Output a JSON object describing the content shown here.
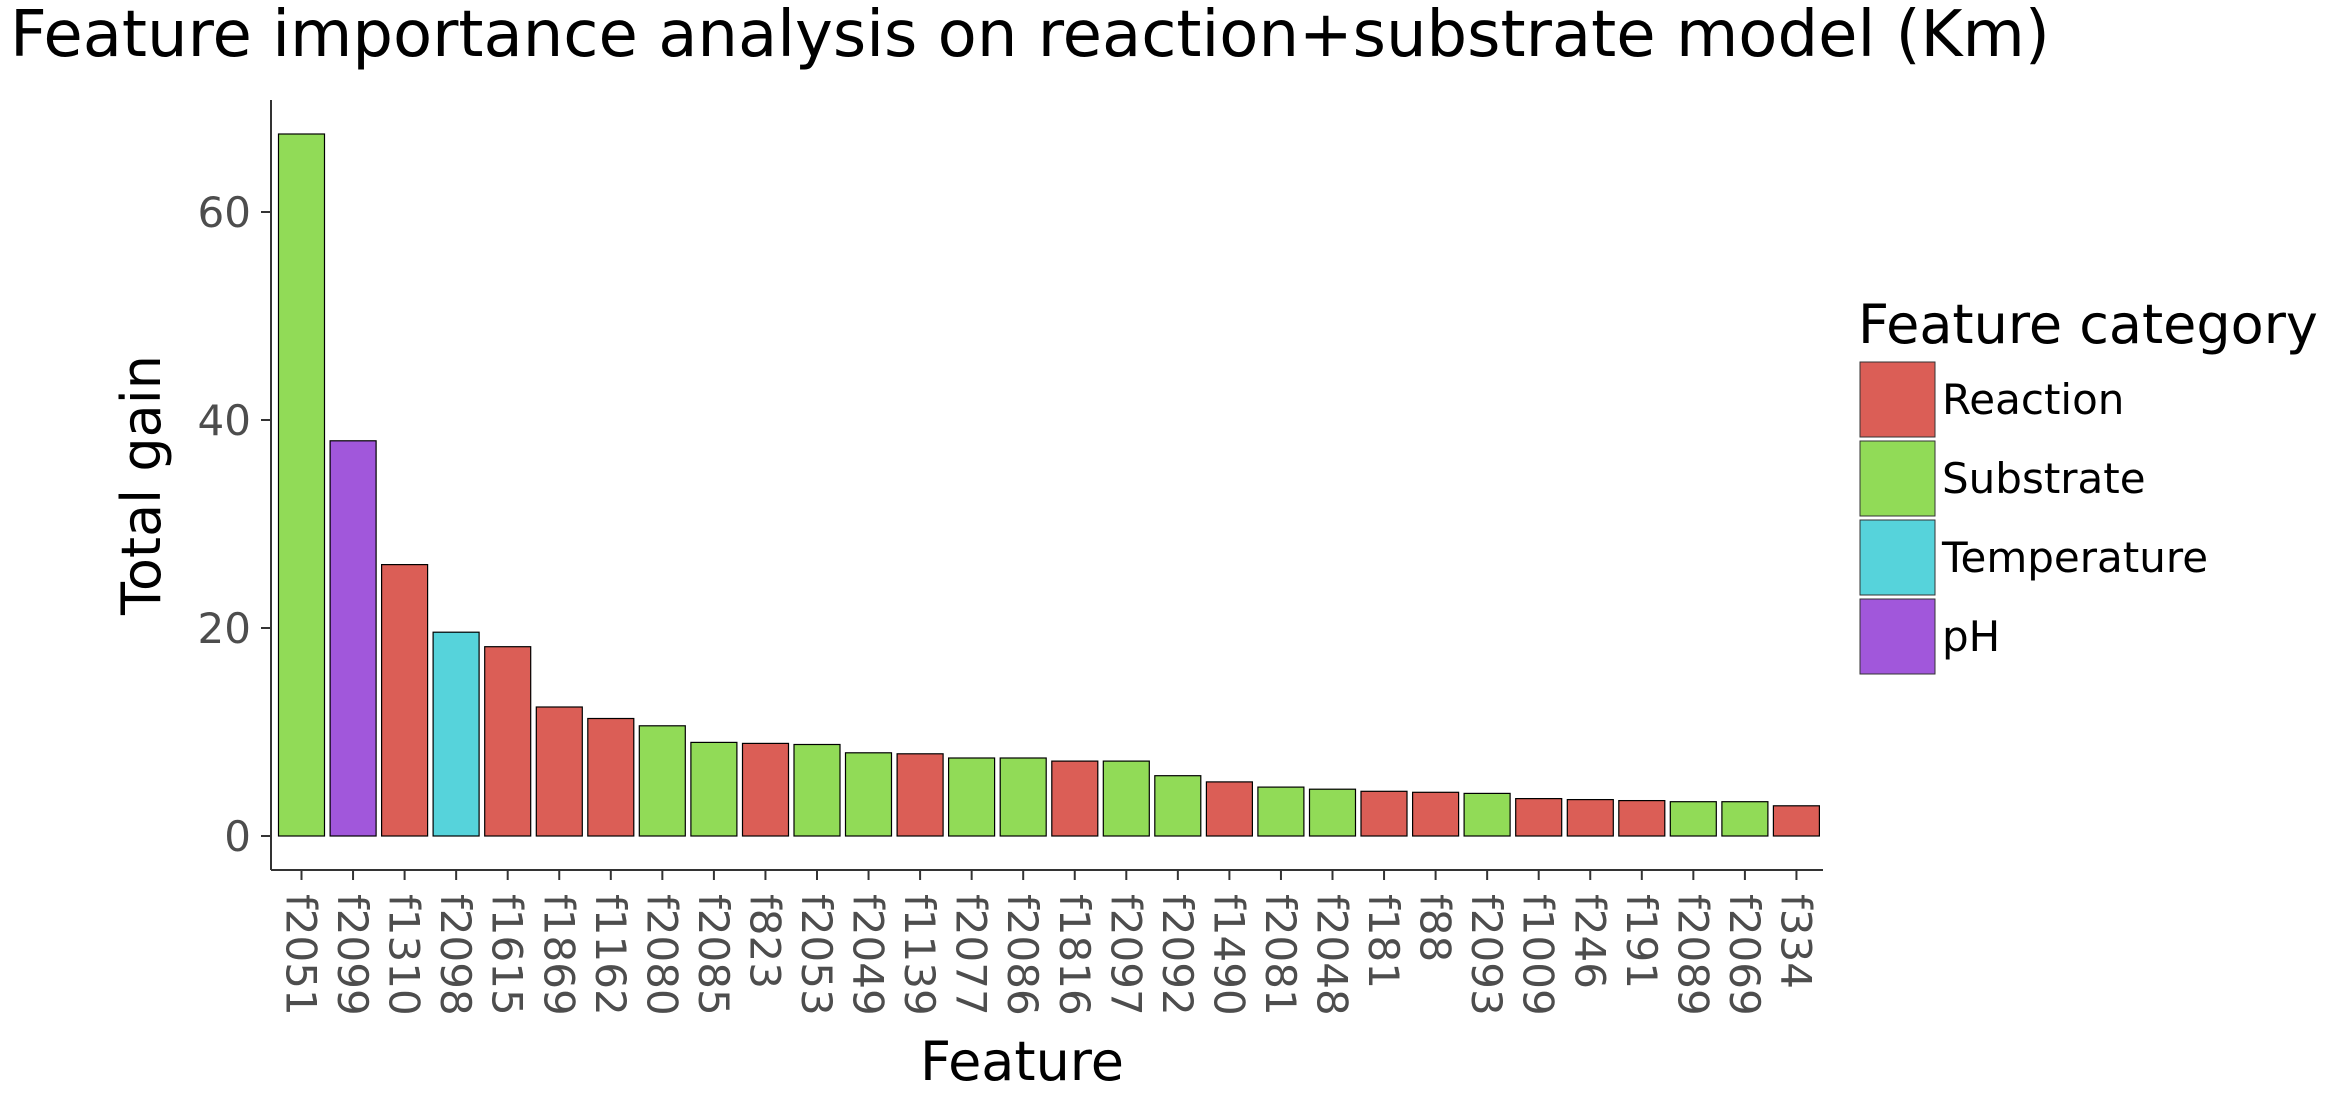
{
  "chart_data": {
    "type": "bar",
    "title": "Feature importance analysis on reaction+substrate model (Km)",
    "xlabel": "Feature",
    "ylabel": "Total gain",
    "ylim": [
      0,
      70
    ],
    "yticks": [
      0,
      20,
      40,
      60
    ],
    "grid": false,
    "legend": {
      "title": "Feature category",
      "placement": "right",
      "entries": [
        {
          "name": "Reaction",
          "color": "#db5e56"
        },
        {
          "name": "Substrate",
          "color": "#91db57"
        },
        {
          "name": "Temperature",
          "color": "#56d3db"
        },
        {
          "name": "pH",
          "color": "#a157db"
        }
      ]
    },
    "categories": [
      "f2051",
      "f2099",
      "f1310",
      "f2098",
      "f1615",
      "f1869",
      "f1162",
      "f2080",
      "f2085",
      "f823",
      "f2053",
      "f2049",
      "f1139",
      "f2077",
      "f2086",
      "f1816",
      "f2097",
      "f2092",
      "f1490",
      "f2081",
      "f2048",
      "f181",
      "f88",
      "f2093",
      "f1009",
      "f246",
      "f191",
      "f2089",
      "f2069",
      "f334"
    ],
    "values": [
      67.5,
      38.0,
      26.1,
      19.6,
      18.2,
      12.4,
      11.3,
      10.6,
      9.0,
      8.9,
      8.8,
      8.0,
      7.9,
      7.5,
      7.5,
      7.2,
      7.2,
      5.8,
      5.2,
      4.7,
      4.5,
      4.3,
      4.2,
      4.1,
      3.6,
      3.5,
      3.4,
      3.3,
      3.3,
      2.9
    ],
    "bar_category": [
      "Substrate",
      "pH",
      "Reaction",
      "Temperature",
      "Reaction",
      "Reaction",
      "Reaction",
      "Substrate",
      "Substrate",
      "Reaction",
      "Substrate",
      "Substrate",
      "Reaction",
      "Substrate",
      "Substrate",
      "Reaction",
      "Substrate",
      "Substrate",
      "Reaction",
      "Substrate",
      "Substrate",
      "Reaction",
      "Reaction",
      "Substrate",
      "Reaction",
      "Reaction",
      "Reaction",
      "Substrate",
      "Substrate",
      "Reaction"
    ]
  }
}
